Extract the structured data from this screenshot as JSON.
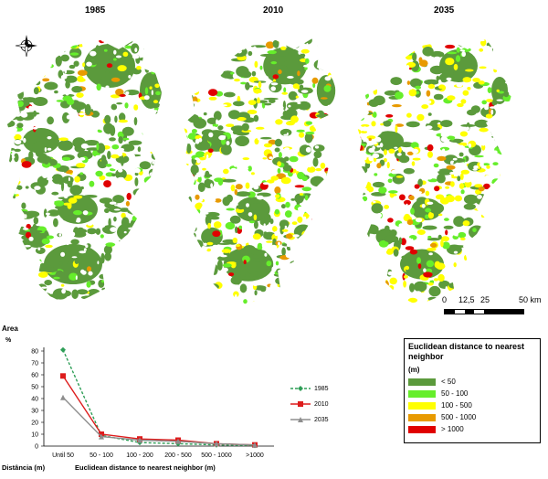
{
  "maps": [
    {
      "year": "1985"
    },
    {
      "year": "2010"
    },
    {
      "year": "2035"
    }
  ],
  "scale": {
    "ticks": [
      "0",
      "12,5",
      "25",
      "50 km"
    ]
  },
  "legend": {
    "title": "Euclidean distance to nearest neighbor",
    "unit": "(m)",
    "classes": [
      {
        "label": "< 50",
        "color": "#5b9a3c"
      },
      {
        "label": "50 - 100",
        "color": "#66ee2b"
      },
      {
        "label": "100 - 500",
        "color": "#ffff00"
      },
      {
        "label": "500 - 1000",
        "color": "#e89a00"
      },
      {
        "label": "> 1000",
        "color": "#e00000"
      }
    ]
  },
  "chart_data": {
    "type": "line",
    "title": "Area",
    "ylabel": "%",
    "xlabel": "Euclidean distance to nearest neighbor (m)",
    "xlabel_pt": "Distância (m)",
    "categories": [
      "Until 50",
      "50 - 100",
      "100 - 200",
      "200 - 500",
      "500 - 1000",
      ">1000"
    ],
    "ylim": [
      0,
      80
    ],
    "yticks": [
      0,
      10,
      20,
      30,
      40,
      50,
      60,
      70,
      80
    ],
    "grid": false,
    "legend_position": "right",
    "series": [
      {
        "name": "1985",
        "values": [
          81,
          9,
          3,
          2,
          1,
          0.5
        ],
        "color": "#2e9e57",
        "dash": true,
        "marker": "diamond"
      },
      {
        "name": "2010",
        "values": [
          59,
          10,
          6,
          5,
          2,
          1
        ],
        "color": "#dd1c1c",
        "dash": false,
        "marker": "square"
      },
      {
        "name": "2035",
        "values": [
          41,
          8,
          5,
          4,
          2,
          1
        ],
        "color": "#8d8d8d",
        "dash": false,
        "marker": "triangle"
      }
    ]
  }
}
